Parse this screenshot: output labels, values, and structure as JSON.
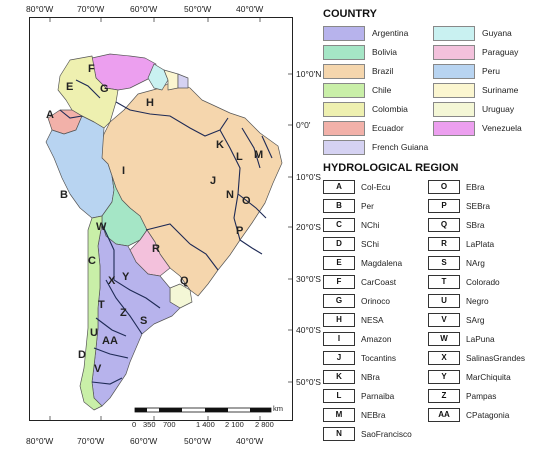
{
  "map": {
    "lon_labels": [
      "80°0'W",
      "70°0'W",
      "60°0'W",
      "50°0'W",
      "40°0'W"
    ],
    "lat_labels": [
      "10°0'N",
      "0°0'",
      "10°0'S",
      "20°0'S",
      "30°0'S",
      "40°0'S",
      "50°0'S"
    ],
    "scale": {
      "unit": "km",
      "labels": [
        "0",
        "350",
        "700",
        "1 400",
        "2 100",
        "2 800"
      ]
    },
    "region_letters": [
      "A",
      "B",
      "C",
      "D",
      "E",
      "F",
      "G",
      "H",
      "I",
      "J",
      "K",
      "L",
      "M",
      "N",
      "O",
      "P",
      "Q",
      "R",
      "S",
      "T",
      "U",
      "V",
      "W",
      "X",
      "Y",
      "Z",
      "AA"
    ]
  },
  "legend": {
    "country_title": "COUNTRY",
    "countries": [
      {
        "name": "Argentina",
        "color": "#b7b3ec"
      },
      {
        "name": "Bolivia",
        "color": "#a5e6c6"
      },
      {
        "name": "Brazil",
        "color": "#f5d6ad"
      },
      {
        "name": "Chile",
        "color": "#c9efa8"
      },
      {
        "name": "Colombia",
        "color": "#eef0b0"
      },
      {
        "name": "Ecuador",
        "color": "#f2b1a9"
      },
      {
        "name": "French Guiana",
        "color": "#d5d2f2"
      },
      {
        "name": "Guyana",
        "color": "#c9f1f1"
      },
      {
        "name": "Paraguay",
        "color": "#f3c1dc"
      },
      {
        "name": "Peru",
        "color": "#b8d4f1"
      },
      {
        "name": "Suriname",
        "color": "#fbf6d0"
      },
      {
        "name": "Uruguay",
        "color": "#f4f7d6"
      },
      {
        "name": "Venezuela",
        "color": "#ec9fef"
      }
    ],
    "region_title": "HYDROLOGICAL REGION",
    "regions_left": [
      {
        "code": "A",
        "name": "Col-Ecu"
      },
      {
        "code": "B",
        "name": "Per"
      },
      {
        "code": "C",
        "name": "NChi"
      },
      {
        "code": "D",
        "name": "SChi"
      },
      {
        "code": "E",
        "name": "Magdalena"
      },
      {
        "code": "F",
        "name": "CarCoast"
      },
      {
        "code": "G",
        "name": "Orinoco"
      },
      {
        "code": "H",
        "name": "NESA"
      },
      {
        "code": "I",
        "name": "Amazon"
      },
      {
        "code": "J",
        "name": "Tocantins"
      },
      {
        "code": "K",
        "name": "NBra"
      },
      {
        "code": "L",
        "name": "Parnaiba"
      },
      {
        "code": "M",
        "name": "NEBra"
      },
      {
        "code": "N",
        "name": "SaoFrancisco"
      }
    ],
    "regions_right": [
      {
        "code": "O",
        "name": "EBra"
      },
      {
        "code": "P",
        "name": "SEBra"
      },
      {
        "code": "Q",
        "name": "SBra"
      },
      {
        "code": "R",
        "name": "LaPlata"
      },
      {
        "code": "S",
        "name": "NArg"
      },
      {
        "code": "T",
        "name": "Colorado"
      },
      {
        "code": "U",
        "name": "Negro"
      },
      {
        "code": "V",
        "name": "SArg"
      },
      {
        "code": "W",
        "name": "LaPuna"
      },
      {
        "code": "X",
        "name": "SalinasGrandes"
      },
      {
        "code": "Y",
        "name": "MarChiquita"
      },
      {
        "code": "Z",
        "name": "Pampas"
      },
      {
        "code": "AA",
        "name": "CPatagonia"
      }
    ]
  }
}
